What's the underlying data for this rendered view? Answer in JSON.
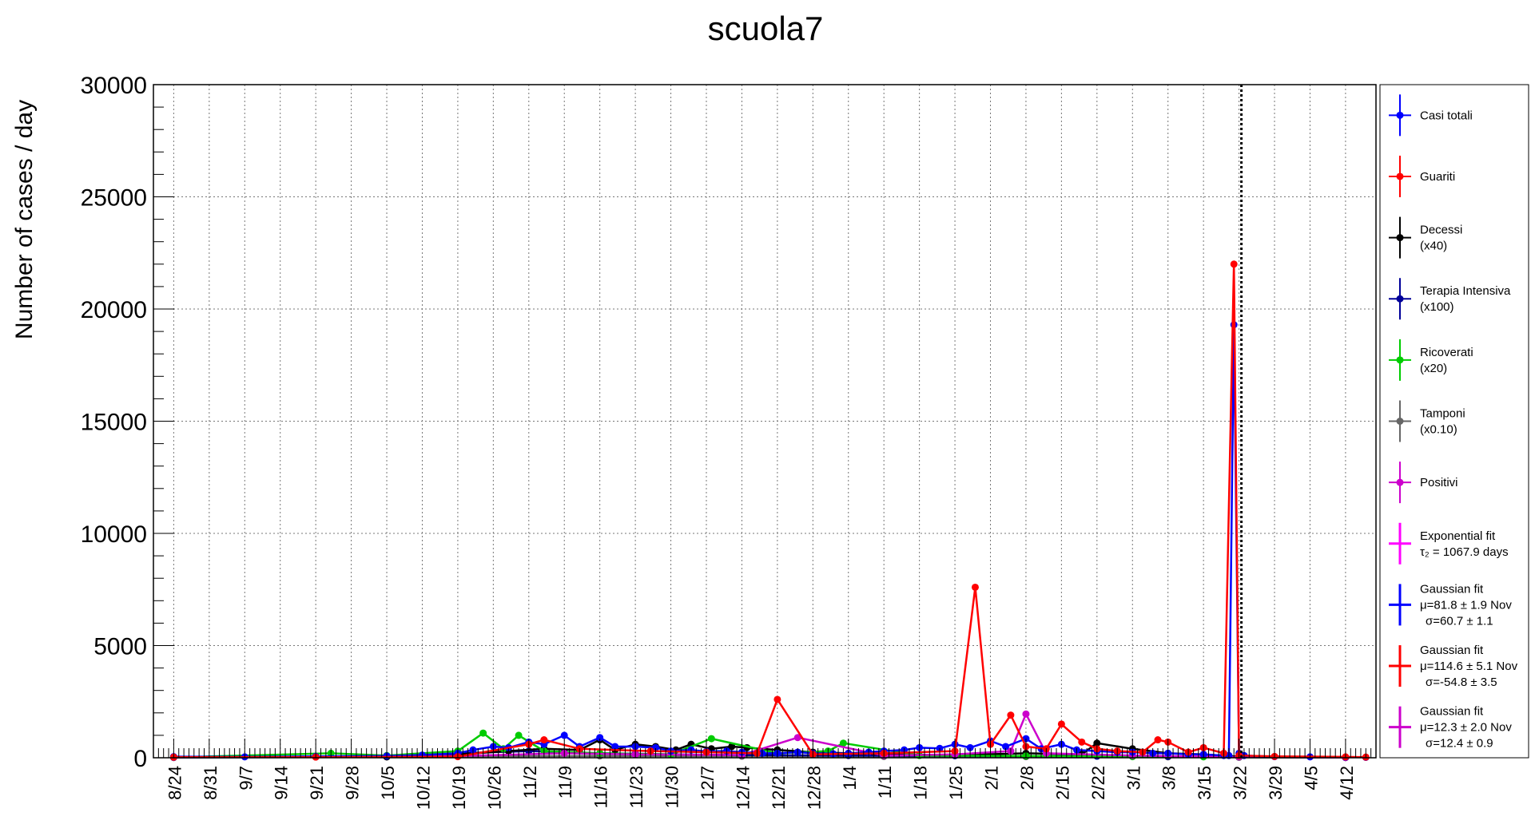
{
  "chart_data": {
    "type": "line",
    "title": "scuola7",
    "xlabel": "",
    "ylabel": "Number of cases / day",
    "ylim": [
      0,
      30000
    ],
    "yticks": [
      0,
      5000,
      10000,
      15000,
      20000,
      25000,
      30000
    ],
    "xtick_labels": [
      "8/24",
      "8/31",
      "9/7",
      "9/14",
      "9/21",
      "9/28",
      "10/5",
      "10/12",
      "10/19",
      "10/26",
      "11/2",
      "11/9",
      "11/16",
      "11/23",
      "11/30",
      "12/7",
      "12/14",
      "12/21",
      "12/28",
      "1/4",
      "1/11",
      "1/18",
      "1/25",
      "2/1",
      "2/8",
      "2/15",
      "2/22",
      "3/1",
      "3/8",
      "3/15",
      "3/22",
      "3/29",
      "4/5",
      "4/12"
    ],
    "grid": true,
    "vline_date": "3/22",
    "legend_position": "right",
    "legend": [
      {
        "name": "Casi totali",
        "sub": "",
        "color": "#0000ff"
      },
      {
        "name": "Guariti",
        "sub": "",
        "color": "#ff0000"
      },
      {
        "name": "Decessi",
        "sub": "(x40)",
        "color": "#000000"
      },
      {
        "name": "Terapia Intensiva",
        "sub": "(x100)",
        "color": "#000099"
      },
      {
        "name": "Ricoverati",
        "sub": "(x20)",
        "color": "#00cc00"
      },
      {
        "name": "Tamponi",
        "sub": "(x0.10)",
        "color": "#666666"
      },
      {
        "name": "Positivi",
        "sub": "",
        "color": "#cc00cc"
      },
      {
        "name": "Exponential fit",
        "sub": "τ₂ = 1067.9 days",
        "sub2": "",
        "color": "#ff00ff"
      },
      {
        "name": "Gaussian fit",
        "sub": "μ=81.8 ± 1.9 Nov",
        "sub2": "σ=60.7 ± 1.1",
        "color": "#0000ff"
      },
      {
        "name": "Gaussian fit",
        "sub": "μ=114.6 ± 5.1 Nov",
        "sub2": "σ=-54.8 ± 3.5",
        "color": "#ff0000"
      },
      {
        "name": "Gaussian fit",
        "sub": "μ=12.3 ± 2.0 Nov",
        "sub2": "σ=12.4 ± 0.9",
        "color": "#cc00cc"
      }
    ],
    "series": [
      {
        "name": "Casi totali",
        "color": "#0000ff",
        "x": [
          "8/24",
          "9/7",
          "9/21",
          "10/5",
          "10/12",
          "10/19",
          "10/22",
          "10/26",
          "10/29",
          "11/2",
          "11/5",
          "11/9",
          "11/12",
          "11/16",
          "11/19",
          "11/23",
          "11/27",
          "11/30",
          "12/4",
          "12/7",
          "12/11",
          "12/14",
          "12/18",
          "12/21",
          "12/25",
          "12/28",
          "1/1",
          "1/4",
          "1/8",
          "1/11",
          "1/15",
          "1/18",
          "1/22",
          "1/25",
          "1/28",
          "2/1",
          "2/4",
          "2/8",
          "2/11",
          "2/15",
          "2/18",
          "2/22",
          "2/26",
          "3/1",
          "3/5",
          "3/8",
          "3/12",
          "3/15",
          "3/19",
          "3/20",
          "3/21",
          "3/22",
          "3/23",
          "3/29",
          "4/5",
          "4/12",
          "4/16"
        ],
        "y": [
          50,
          40,
          60,
          80,
          120,
          200,
          350,
          500,
          450,
          700,
          600,
          1000,
          500,
          900,
          500,
          500,
          450,
          300,
          350,
          280,
          300,
          250,
          200,
          200,
          250,
          200,
          180,
          200,
          250,
          300,
          350,
          450,
          420,
          600,
          450,
          750,
          500,
          850,
          400,
          600,
          350,
          300,
          250,
          250,
          200,
          200,
          150,
          150,
          100,
          100,
          19300,
          200,
          100,
          50,
          40,
          30,
          20
        ]
      },
      {
        "name": "Guariti",
        "color": "#ff0000",
        "x": [
          "8/24",
          "9/21",
          "10/19",
          "11/2",
          "11/5",
          "11/12",
          "11/26",
          "12/7",
          "12/17",
          "12/21",
          "12/28",
          "1/11",
          "1/25",
          "1/29",
          "2/1",
          "2/5",
          "2/8",
          "2/12",
          "2/15",
          "2/19",
          "2/22",
          "2/26",
          "3/3",
          "3/6",
          "3/8",
          "3/12",
          "3/15",
          "3/19",
          "3/21",
          "3/22",
          "3/29",
          "4/12",
          "4/16"
        ],
        "y": [
          30,
          30,
          50,
          600,
          800,
          400,
          300,
          250,
          200,
          2600,
          150,
          200,
          300,
          7600,
          600,
          1900,
          500,
          400,
          1500,
          700,
          400,
          300,
          250,
          800,
          700,
          250,
          450,
          200,
          22000,
          100,
          60,
          40,
          30
        ]
      },
      {
        "name": "Decessi (x40)",
        "color": "#000000",
        "x": [
          "8/24",
          "10/5",
          "10/19",
          "10/29",
          "11/5",
          "11/12",
          "11/16",
          "11/19",
          "11/23",
          "11/27",
          "12/1",
          "12/4",
          "12/8",
          "12/12",
          "12/15",
          "12/21",
          "12/28",
          "1/4",
          "1/11",
          "1/25",
          "2/8",
          "2/19",
          "2/22",
          "3/1",
          "3/8",
          "3/15",
          "3/22",
          "4/12"
        ],
        "y": [
          20,
          40,
          150,
          300,
          400,
          350,
          800,
          350,
          600,
          500,
          350,
          600,
          400,
          500,
          450,
          350,
          250,
          200,
          150,
          120,
          200,
          150,
          650,
          400,
          200,
          150,
          50,
          20
        ]
      },
      {
        "name": "Terapia Intensiva (x100)",
        "color": "#000099",
        "x": [
          "8/24",
          "10/5",
          "10/19",
          "11/2",
          "11/9",
          "11/16",
          "11/23",
          "11/30",
          "12/14",
          "1/4",
          "1/25",
          "2/8",
          "2/22",
          "3/8",
          "3/22",
          "4/12"
        ],
        "y": [
          10,
          40,
          200,
          300,
          250,
          200,
          180,
          150,
          120,
          100,
          90,
          80,
          70,
          60,
          30,
          10
        ]
      },
      {
        "name": "Ricoverati (x20)",
        "color": "#00cc00",
        "x": [
          "8/24",
          "9/24",
          "10/5",
          "10/19",
          "10/24",
          "10/28",
          "10/31",
          "11/5",
          "11/16",
          "11/30",
          "12/8",
          "12/21",
          "12/31",
          "1/3",
          "1/18",
          "2/8",
          "3/1",
          "3/15",
          "3/22",
          "4/12"
        ],
        "y": [
          20,
          200,
          100,
          300,
          1100,
          400,
          1000,
          300,
          200,
          150,
          850,
          200,
          300,
          650,
          100,
          80,
          50,
          40,
          20,
          10
        ]
      },
      {
        "name": "Tamponi (x0.10)",
        "color": "#666666",
        "x": [
          "8/24",
          "9/21",
          "10/19",
          "11/16",
          "12/14",
          "1/11",
          "2/8",
          "3/8",
          "3/22",
          "4/12"
        ],
        "y": [
          30,
          40,
          60,
          80,
          70,
          60,
          50,
          40,
          30,
          20
        ]
      },
      {
        "name": "Positivi",
        "color": "#cc00cc",
        "x": [
          "8/24",
          "10/19",
          "11/9",
          "11/23",
          "12/14",
          "12/25",
          "1/11",
          "1/25",
          "2/5",
          "2/8",
          "2/12",
          "3/1",
          "3/22",
          "4/12"
        ],
        "y": [
          20,
          80,
          200,
          150,
          120,
          900,
          100,
          150,
          300,
          1950,
          200,
          100,
          30,
          10
        ]
      }
    ]
  }
}
